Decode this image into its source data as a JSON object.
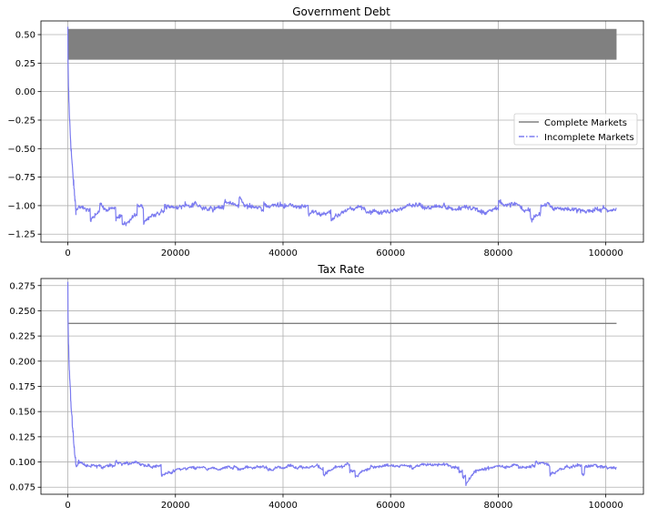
{
  "chart_data": [
    {
      "type": "line",
      "title": "Government Debt",
      "xlim": [
        -5000,
        107000
      ],
      "ylim": [
        -1.32,
        0.62
      ],
      "x_ticks": [
        0,
        20000,
        40000,
        60000,
        80000,
        100000
      ],
      "x_tick_labels": [
        "0",
        "20000",
        "40000",
        "60000",
        "80000",
        "100000"
      ],
      "y_ticks": [
        0.5,
        0.25,
        0.0,
        -0.25,
        -0.5,
        -0.75,
        -1.0,
        -1.25
      ],
      "y_tick_labels": [
        "0.50",
        "0.25",
        "0.00",
        "−0.25",
        "−0.50",
        "−0.75",
        "−1.00",
        "−1.25"
      ],
      "grid": true,
      "legend": "center-right",
      "series": [
        {
          "name": "Complete Markets",
          "color": "#808080",
          "linestyle": "solid",
          "kind": "oscillating-band",
          "x_range": [
            0,
            102000
          ],
          "band": [
            0.28,
            0.55
          ]
        },
        {
          "name": "Incomplete Markets",
          "color": "#7b7bf0",
          "linestyle": "dashdot",
          "kind": "transient-then-noise",
          "x_range": [
            0,
            102000
          ],
          "start_value": 0.55,
          "settle_x": 1500,
          "mean": -1.03,
          "noise": 0.05
        }
      ]
    },
    {
      "type": "line",
      "title": "Tax Rate",
      "xlim": [
        -5000,
        107000
      ],
      "ylim": [
        0.068,
        0.282
      ],
      "x_ticks": [
        0,
        20000,
        40000,
        60000,
        80000,
        100000
      ],
      "x_tick_labels": [
        "0",
        "20000",
        "40000",
        "60000",
        "80000",
        "100000"
      ],
      "y_ticks": [
        0.275,
        0.25,
        0.225,
        0.2,
        0.175,
        0.15,
        0.125,
        0.1,
        0.075
      ],
      "y_tick_labels": [
        "0.275",
        "0.250",
        "0.225",
        "0.200",
        "0.175",
        "0.150",
        "0.125",
        "0.100",
        "0.075"
      ],
      "grid": true,
      "series": [
        {
          "name": "Complete Markets",
          "color": "#808080",
          "linestyle": "solid",
          "kind": "constant",
          "x_range": [
            0,
            102000
          ],
          "value": 0.2375
        },
        {
          "name": "Incomplete Markets",
          "color": "#7b7bf0",
          "linestyle": "dashdot",
          "kind": "transient-then-noise",
          "x_range": [
            0,
            102000
          ],
          "start_value": 0.278,
          "settle_x": 1500,
          "mean": 0.096,
          "noise": 0.004
        }
      ]
    }
  ]
}
